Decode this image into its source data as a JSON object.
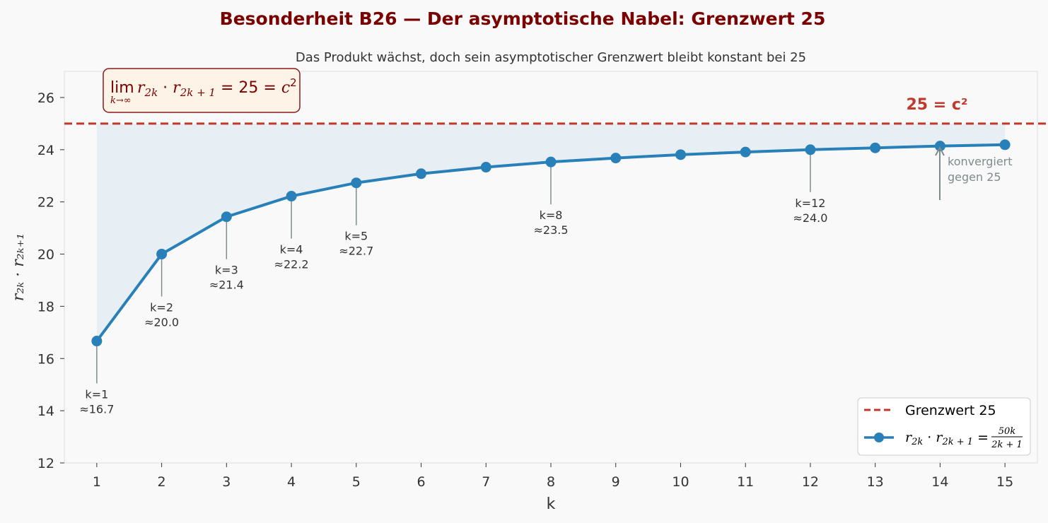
{
  "title": "Besonderheit B26 — Der asymptotische Nabel: Grenzwert 25",
  "subtitle": "Das Produkt wächst, doch sein asymptotischer Grenzwert bleibt konstant bei 25",
  "colors": {
    "title": "#7b0000",
    "line": "#2980b9",
    "limit": "#c0392b",
    "fill": "#dce8f0",
    "annotation_line": "#7f8c8d",
    "box_fill": "#fdf3e6",
    "box_edge": "#8b1a1a"
  },
  "formula_box": {
    "lim": "lim",
    "sub": "k→∞",
    "expr_a": "r",
    "expr_a_sub": "2k",
    "dot": " · ",
    "expr_b": "r",
    "expr_b_sub": "2k + 1",
    "rhs": " = 25 = ",
    "c": "c",
    "sup": "2"
  },
  "limit_label": "25 = c²",
  "convergence_note": [
    "konvergiert",
    "gegen 25"
  ],
  "legend": {
    "limit_entry": "Grenzwert 25",
    "series_entry": {
      "a": "r",
      "a_sub": "2k",
      "dot": " · ",
      "b": "r",
      "b_sub": "2k + 1",
      "eq": " = ",
      "num": "50k",
      "den": "2k + 1"
    }
  },
  "chart_data": {
    "type": "line",
    "xlabel": "k",
    "ylabel": "r₂ₖ · r₂ₖ₊₁",
    "xlim": [
      0.5,
      15.5
    ],
    "ylim": [
      12,
      27
    ],
    "xticks": [
      1,
      2,
      3,
      4,
      5,
      6,
      7,
      8,
      9,
      10,
      11,
      12,
      13,
      14,
      15
    ],
    "yticks": [
      12,
      14,
      16,
      18,
      20,
      22,
      24,
      26
    ],
    "series": [
      {
        "name": "r₂ₖ · r₂ₖ₊₁ = 50k/(2k+1)",
        "x": [
          1,
          2,
          3,
          4,
          5,
          6,
          7,
          8,
          9,
          10,
          11,
          12,
          13,
          14,
          15
        ],
        "y": [
          16.67,
          20.0,
          21.43,
          22.22,
          22.73,
          23.08,
          23.33,
          23.53,
          23.68,
          23.81,
          23.91,
          24.0,
          24.07,
          24.14,
          24.19
        ]
      }
    ],
    "reference_line": {
      "name": "Grenzwert 25",
      "y": 25,
      "style": "dashed"
    },
    "annotations": [
      {
        "k": 1,
        "line1": "k=1",
        "line2": "≈16.7"
      },
      {
        "k": 2,
        "line1": "k=2",
        "line2": "≈20.0"
      },
      {
        "k": 3,
        "line1": "k=3",
        "line2": "≈21.4"
      },
      {
        "k": 4,
        "line1": "k=4",
        "line2": "≈22.2"
      },
      {
        "k": 5,
        "line1": "k=5",
        "line2": "≈22.7"
      },
      {
        "k": 8,
        "line1": "k=8",
        "line2": "≈23.5"
      },
      {
        "k": 12,
        "line1": "k=12",
        "line2": "≈24.0"
      }
    ],
    "legend_position": "lower-right",
    "grid": false
  }
}
